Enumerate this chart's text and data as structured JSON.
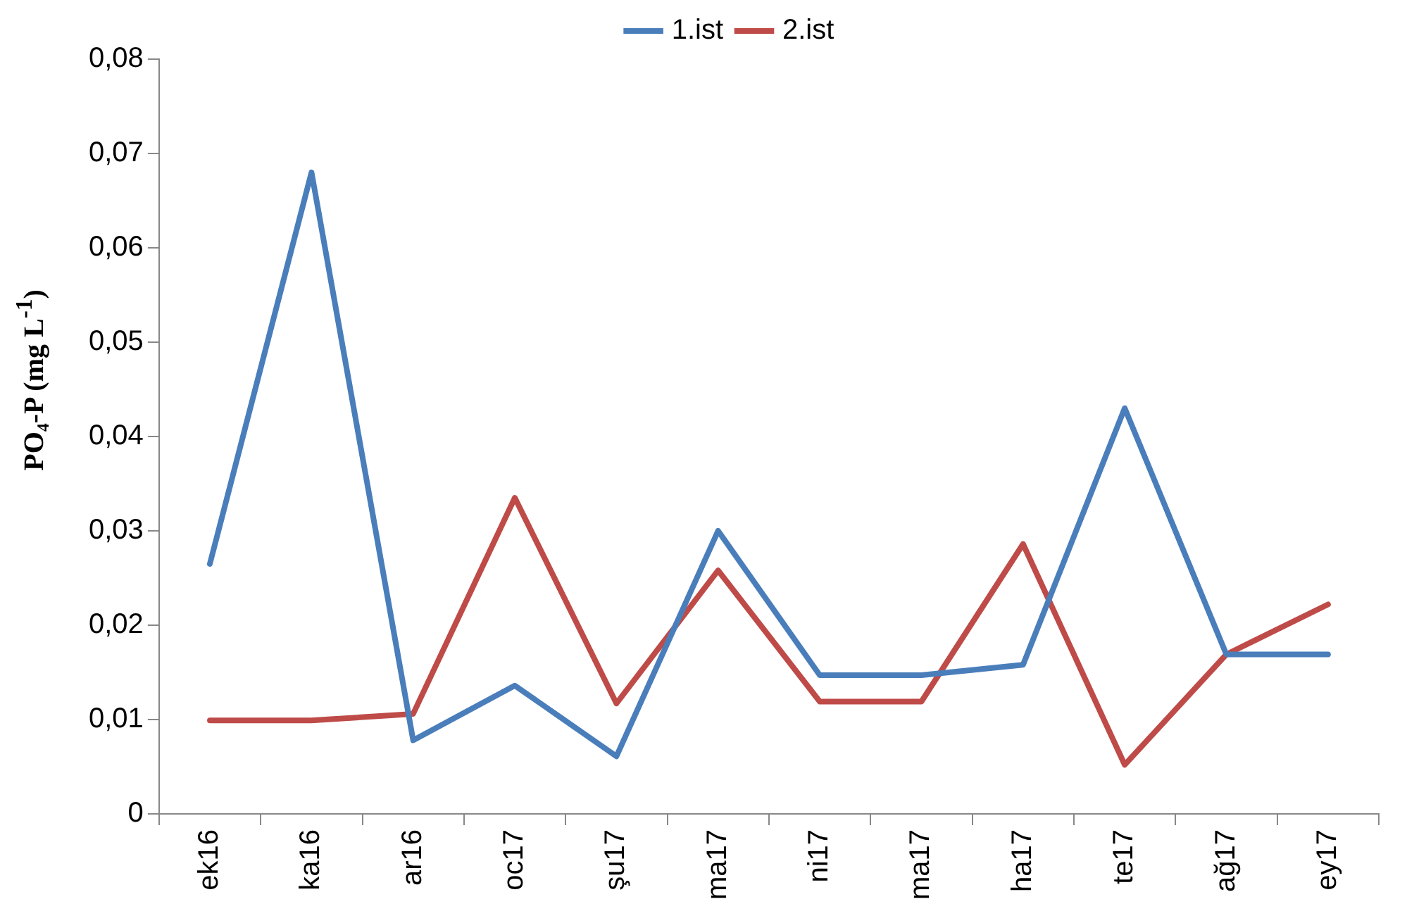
{
  "chart_data": {
    "type": "line",
    "ylabel": "PO₄-P  (mg L$^{-1}$)",
    "categories": [
      "ek16",
      "ka16",
      "ar16",
      "oc17",
      "şu17",
      "ma17",
      "ni17",
      "ma17",
      "ha17",
      "te17",
      "ağ17",
      "ey17"
    ],
    "series": [
      {
        "name": "1.ist",
        "color": "#4a7ebb",
        "values": [
          0.0265,
          0.068,
          0.0078,
          0.0136,
          0.0061,
          0.03,
          0.0147,
          0.0147,
          0.0158,
          0.043,
          0.0169,
          0.0169
        ]
      },
      {
        "name": "2.ist",
        "color": "#be4b48",
        "values": [
          0.0099,
          0.0099,
          0.0106,
          0.0335,
          0.0117,
          0.0258,
          0.0119,
          0.0119,
          0.0286,
          0.0052,
          0.0169,
          0.0222
        ]
      }
    ],
    "ylim": [
      0,
      0.08
    ],
    "yticks": [
      0,
      {
        "value": 0.01,
        "label": "0,01"
      },
      {
        "value": 0.02,
        "label": "0,02"
      },
      {
        "value": 0.03,
        "label": "0,03"
      },
      {
        "value": 0.04,
        "label": "0,04"
      },
      {
        "value": 0.05,
        "label": "0,05"
      },
      {
        "value": 0.06,
        "label": "0,06"
      },
      {
        "value": 0.07,
        "label": "0,07"
      },
      {
        "value": 0.08,
        "label": "0,08"
      }
    ],
    "grid": false,
    "legend": "top",
    "marker": "none",
    "line_style": "solid"
  }
}
